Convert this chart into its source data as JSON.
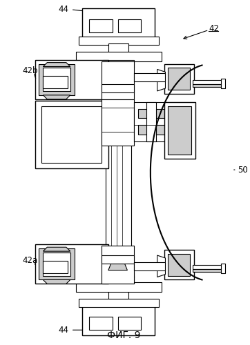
{
  "title": "ФИГ. 9",
  "labels": {
    "44_top": "44",
    "42b": "42b",
    "42": "42",
    "50": "50",
    "42a": "42a",
    "44_bot": "44"
  },
  "bg_color": "#ffffff",
  "line_color": "#000000",
  "fill_light": "#cccccc",
  "fill_mid": "#aaaaaa"
}
